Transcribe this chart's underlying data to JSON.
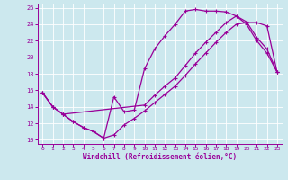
{
  "xlabel": "Windchill (Refroidissement éolien,°C)",
  "background_color": "#cce8ee",
  "line_color": "#990099",
  "xlim": [
    -0.5,
    23.5
  ],
  "ylim": [
    9.5,
    26.5
  ],
  "xticks": [
    0,
    1,
    2,
    3,
    4,
    5,
    6,
    7,
    8,
    9,
    10,
    11,
    12,
    13,
    14,
    15,
    16,
    17,
    18,
    19,
    20,
    21,
    22,
    23
  ],
  "yticks": [
    10,
    12,
    14,
    16,
    18,
    20,
    22,
    24,
    26
  ],
  "line1_x": [
    0,
    1,
    2,
    3,
    4,
    5,
    6,
    7,
    8,
    9,
    10,
    11,
    12,
    13,
    14,
    15,
    16,
    17,
    18,
    19,
    20,
    21,
    22,
    23
  ],
  "line1_y": [
    15.7,
    14.0,
    13.1,
    12.2,
    11.5,
    11.0,
    10.2,
    15.2,
    13.4,
    13.6,
    18.6,
    21.0,
    22.6,
    24.0,
    25.6,
    25.8,
    25.6,
    25.6,
    25.5,
    25.0,
    24.0,
    22.0,
    20.5,
    18.2
  ],
  "line2_x": [
    0,
    1,
    2,
    3,
    4,
    5,
    6,
    7,
    8,
    9,
    10,
    11,
    12,
    13,
    14,
    15,
    16,
    17,
    18,
    19,
    20,
    21,
    22,
    23
  ],
  "line2_y": [
    15.7,
    14.0,
    13.1,
    12.2,
    11.5,
    11.0,
    10.2,
    10.6,
    11.8,
    12.6,
    13.5,
    14.5,
    15.5,
    16.5,
    17.8,
    19.2,
    20.5,
    21.8,
    23.0,
    24.0,
    24.2,
    24.2,
    23.8,
    18.2
  ],
  "line3_x": [
    0,
    1,
    2,
    10,
    11,
    12,
    13,
    14,
    15,
    16,
    17,
    18,
    19,
    20,
    21,
    22,
    23
  ],
  "line3_y": [
    15.7,
    14.0,
    13.1,
    14.2,
    15.4,
    16.5,
    17.5,
    19.0,
    20.5,
    21.8,
    23.0,
    24.2,
    25.0,
    24.3,
    22.4,
    21.0,
    18.2
  ]
}
